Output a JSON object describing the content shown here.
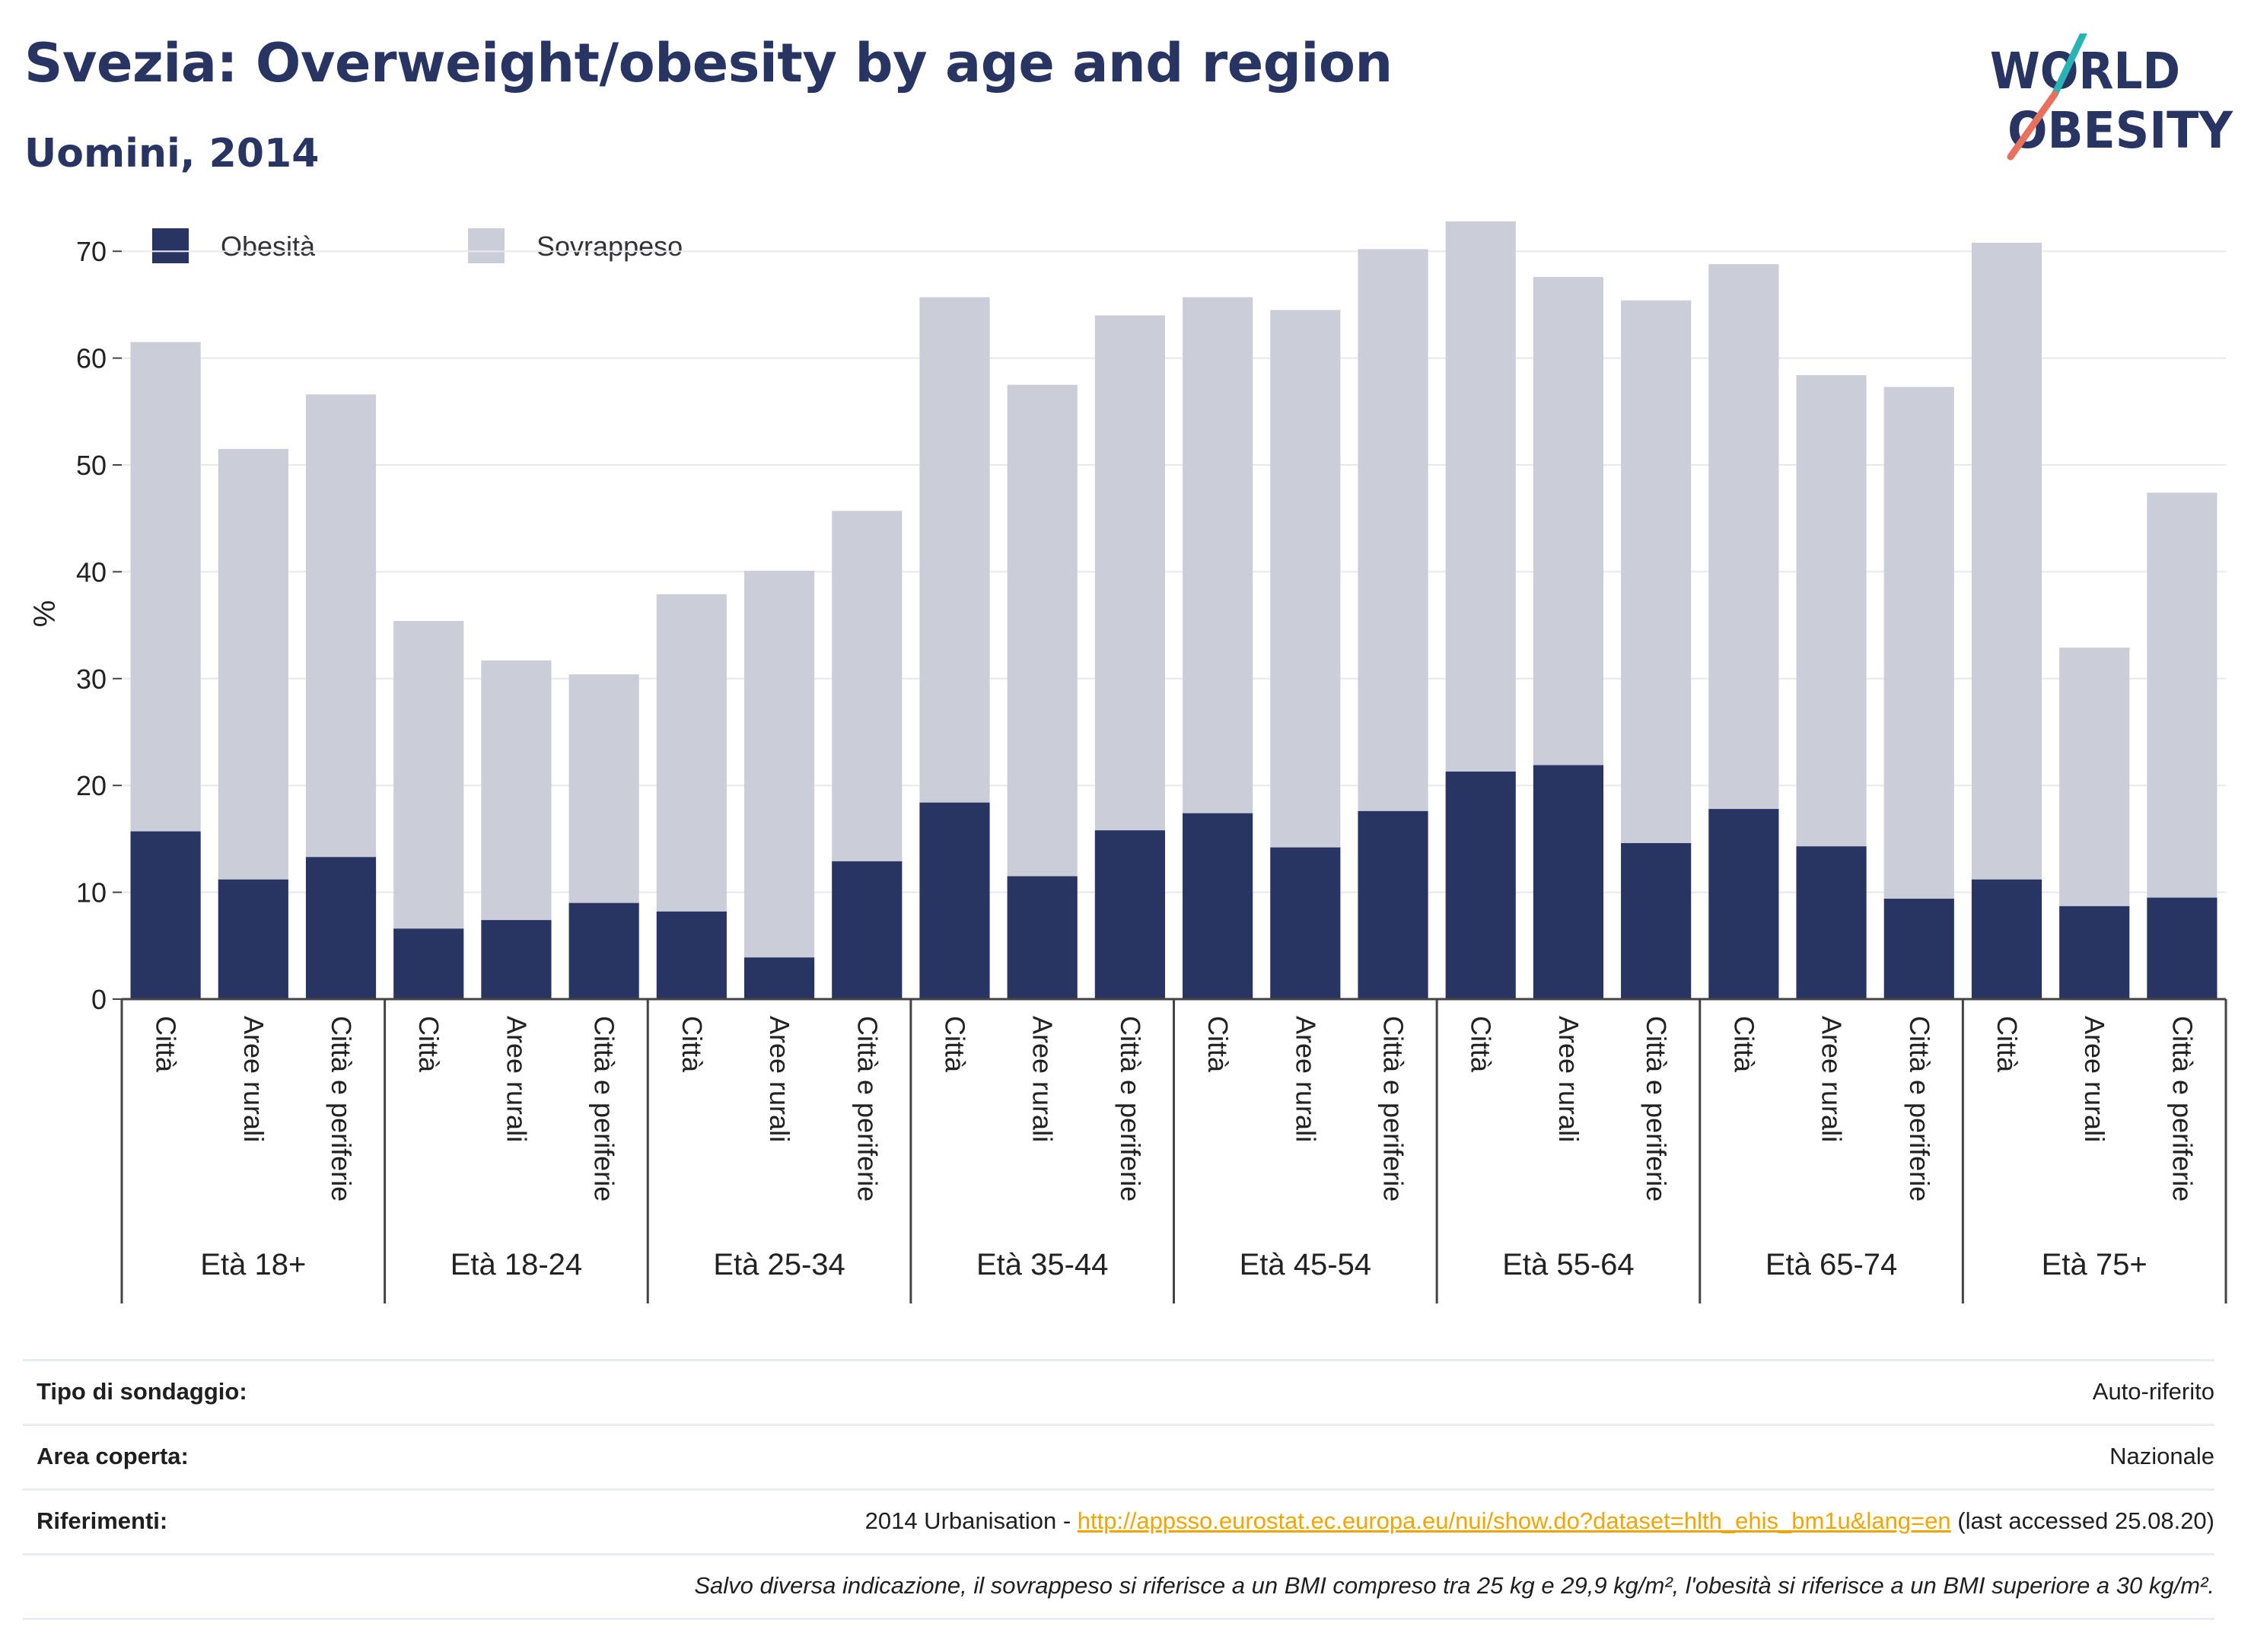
{
  "header": {
    "title": "Svezia: Overweight/obesity by age and region",
    "subtitle": "Uomini, 2014"
  },
  "logo": {
    "line1": "WORLD",
    "line2": "OBESITY",
    "accent_colors": [
      "#2ab3b5",
      "#e8705e"
    ]
  },
  "colors": {
    "obesity": "#283461",
    "overweight": "#cbcdd8",
    "text_dark": "#283461",
    "link": "#f0a500"
  },
  "chart_data": {
    "type": "bar",
    "stacked": true,
    "ylabel": "%",
    "ylim": [
      0,
      75
    ],
    "yticks": [
      0,
      10,
      20,
      30,
      40,
      50,
      60,
      70
    ],
    "grid": true,
    "legend_position": "top-left",
    "groups": [
      "Età 18+",
      "Età 18-24",
      "Età 25-34",
      "Età 35-44",
      "Età 45-54",
      "Età 55-64",
      "Età 65-74",
      "Età 75+"
    ],
    "subcategories": [
      "Città",
      "Aree rurali",
      "Città e periferie"
    ],
    "series": [
      {
        "name": "Obesità",
        "values": [
          15.7,
          11.2,
          13.3,
          6.6,
          7.4,
          9.0,
          8.2,
          3.9,
          12.9,
          18.4,
          11.5,
          15.8,
          17.4,
          14.2,
          17.6,
          21.3,
          21.9,
          14.6,
          17.8,
          14.3,
          9.4,
          11.2,
          8.7,
          9.5
        ]
      },
      {
        "name": "Sovrappeso",
        "values": [
          45.8,
          40.3,
          43.3,
          28.8,
          24.3,
          21.4,
          29.7,
          36.2,
          32.8,
          47.3,
          46.0,
          48.2,
          48.3,
          50.3,
          52.6,
          51.5,
          45.7,
          50.8,
          51.0,
          44.1,
          47.9,
          59.6,
          24.2,
          37.9
        ]
      }
    ]
  },
  "info": {
    "rows": [
      {
        "label": "Tipo di sondaggio:",
        "value": "Auto-riferito"
      },
      {
        "label": "Area coperta:",
        "value": "Nazionale"
      },
      {
        "label": "Riferimenti:",
        "prefix": "2014 Urbanisation - ",
        "link": "http://appsso.eurostat.ec.europa.eu/nui/show.do?dataset=hlth_ehis_bm1u&lang=en",
        "suffix": " (last accessed 25.08.20)"
      }
    ],
    "note": "Salvo diversa indicazione, il sovrappeso si riferisce a un BMI compreso tra 25 kg e 29,9 kg/m², l'obesità si riferisce a un BMI superiore a 30 kg/m²."
  }
}
